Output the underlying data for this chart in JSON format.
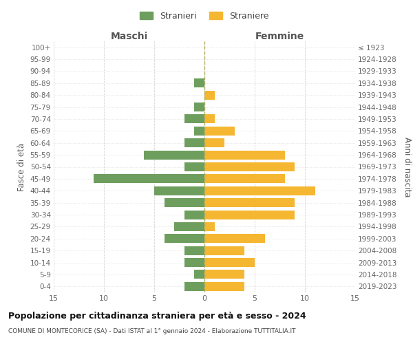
{
  "age_groups": [
    "100+",
    "95-99",
    "90-94",
    "85-89",
    "80-84",
    "75-79",
    "70-74",
    "65-69",
    "60-64",
    "55-59",
    "50-54",
    "45-49",
    "40-44",
    "35-39",
    "30-34",
    "25-29",
    "20-24",
    "15-19",
    "10-14",
    "5-9",
    "0-4"
  ],
  "birth_years": [
    "≤ 1923",
    "1924-1928",
    "1929-1933",
    "1934-1938",
    "1939-1943",
    "1944-1948",
    "1949-1953",
    "1954-1958",
    "1959-1963",
    "1964-1968",
    "1969-1973",
    "1974-1978",
    "1979-1983",
    "1984-1988",
    "1989-1993",
    "1994-1998",
    "1999-2003",
    "2004-2008",
    "2009-2013",
    "2014-2018",
    "2019-2023"
  ],
  "males": [
    0,
    0,
    0,
    1,
    0,
    1,
    2,
    1,
    2,
    6,
    2,
    11,
    5,
    4,
    2,
    3,
    4,
    2,
    2,
    1,
    2
  ],
  "females": [
    0,
    0,
    0,
    0,
    1,
    0,
    1,
    3,
    2,
    8,
    9,
    8,
    11,
    9,
    9,
    1,
    6,
    4,
    5,
    4,
    4
  ],
  "male_color": "#6d9e5e",
  "female_color": "#f5b731",
  "background_color": "#ffffff",
  "grid_color": "#cccccc",
  "title": "Popolazione per cittadinanza straniera per età e sesso - 2024",
  "subtitle": "COMUNE DI MONTECORICE (SA) - Dati ISTAT al 1° gennaio 2024 - Elaborazione TUTTITALIA.IT",
  "xlabel_left": "Maschi",
  "xlabel_right": "Femmine",
  "ylabel_left": "Fasce di età",
  "ylabel_right": "Anni di nascita",
  "legend_male": "Stranieri",
  "legend_female": "Straniere",
  "xlim": 15,
  "bar_height": 0.75
}
